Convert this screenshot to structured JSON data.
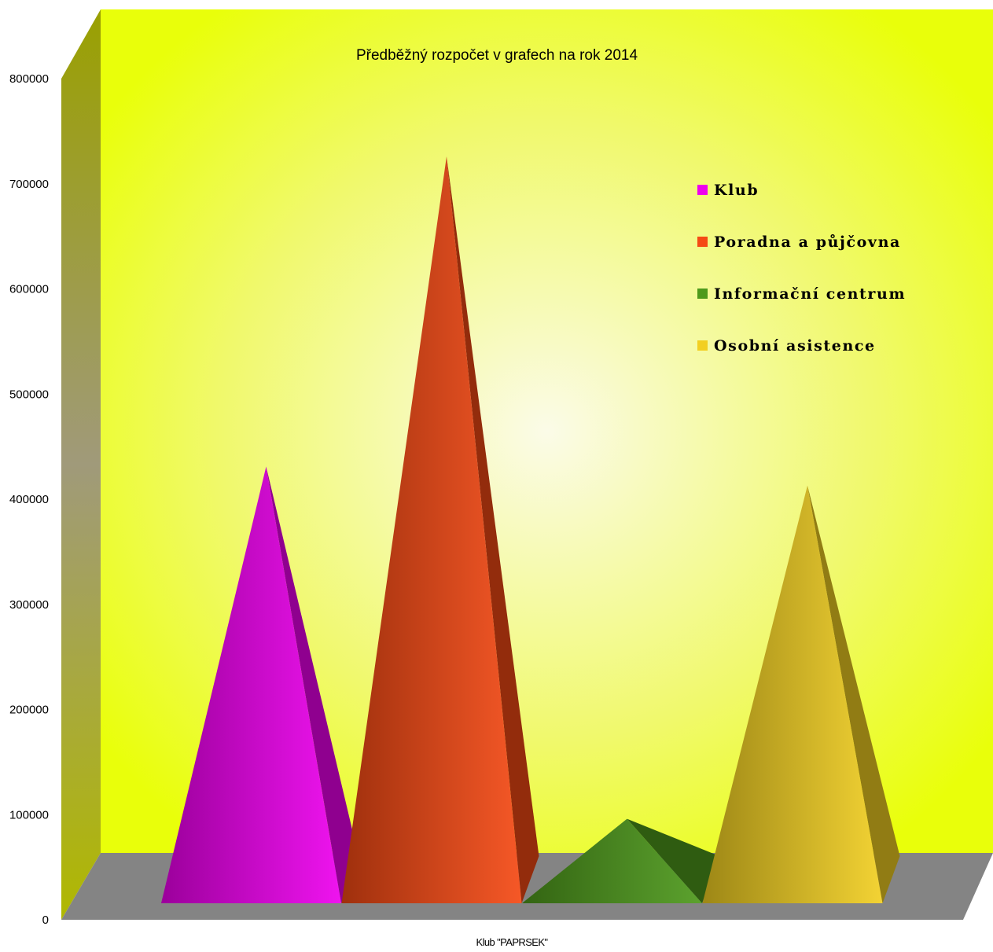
{
  "chart_data": {
    "type": "bar",
    "bar_shape": "pyramid-3d",
    "title": "Předběžný rozpočet v grafech na rok 2014",
    "xlabel": "Klub \"PAPRSEK\"",
    "ylabel": "",
    "categories": [
      "Klub \"PAPRSEK\""
    ],
    "ylim": [
      0,
      800000
    ],
    "yticks": [
      "0",
      "100000",
      "200000",
      "300000",
      "400000",
      "500000",
      "600000",
      "700000",
      "800000"
    ],
    "grid": false,
    "legend_position": "right",
    "series": [
      {
        "name": "Klub",
        "values": [
          440000
        ],
        "color": "#ee00ee"
      },
      {
        "name": "Poradna a půjčovna",
        "values": [
          735000
        ],
        "color": "#f54a14"
      },
      {
        "name": "Informační centrum",
        "values": [
          105000
        ],
        "color": "#4e9a1c"
      },
      {
        "name": "Osobní asistence",
        "values": [
          422000
        ],
        "color": "#f2cf22"
      }
    ],
    "colors": {
      "back_wall": "#e9ff0a",
      "back_wall_glow": "#fbfbe8",
      "side_wall": "#94a000",
      "floor": "#848484"
    }
  }
}
